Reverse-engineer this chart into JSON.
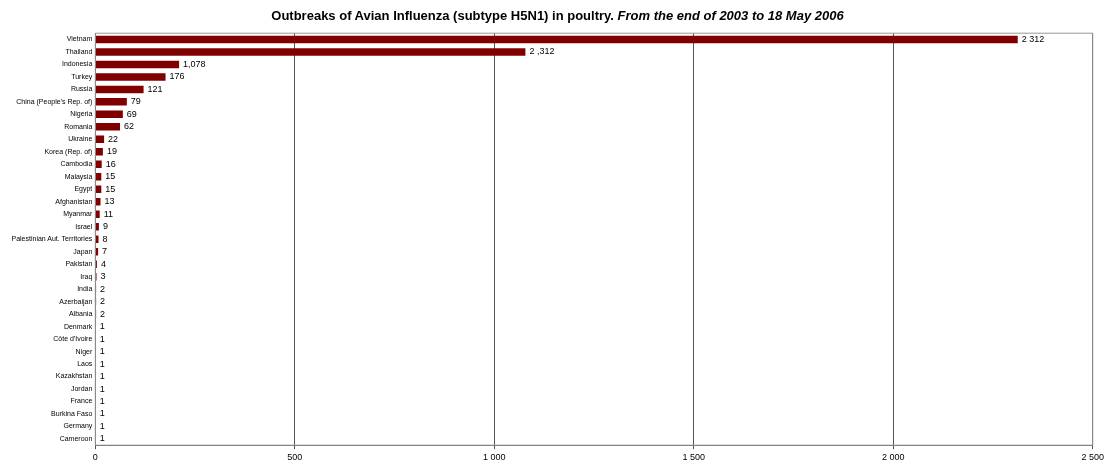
{
  "chart_data": {
    "type": "bar",
    "orientation": "horizontal",
    "title": "Outbreaks of Avian Influenza (subtype H5N1) in poultry.",
    "subtitle": "From the end of 2003 to 18 May 2006",
    "categories": [
      "Vietnam",
      "Thailand",
      "Indonesia",
      "Turkey",
      "Russia",
      "China (People's Rep. of)",
      "Nigeria",
      "Romania",
      "Ukraine",
      "Korea (Rep. of)",
      "Cambodia",
      "Malaysia",
      "Egypt",
      "Afghanistan",
      "Myanmar",
      "Israel",
      "Palestinian Aut. Territories",
      "Japan",
      "Pakistan",
      "Iraq",
      "India",
      "Azerbaijan",
      "Albania",
      "Denmark",
      "Côte d'Ivoire",
      "Niger",
      "Laos",
      "Kazakhstan",
      "Jordan",
      "France",
      "Burkina Faso",
      "Germany",
      "Cameroon"
    ],
    "values": [
      2312,
      1078,
      210,
      176,
      121,
      79,
      69,
      62,
      22,
      19,
      16,
      15,
      15,
      13,
      11,
      9,
      8,
      7,
      4,
      3,
      2,
      2,
      2,
      1,
      1,
      1,
      1,
      1,
      1,
      1,
      1,
      1,
      1
    ],
    "value_labels": [
      "2 312",
      null,
      null,
      "176",
      "121",
      "79",
      "69",
      "62",
      "22",
      "19",
      "16",
      "15",
      "15",
      "13",
      "11",
      "9",
      "8",
      "7",
      "4",
      "3",
      "2",
      "2",
      "2",
      "1",
      "1",
      "1",
      "1",
      "1",
      "1",
      "1",
      "1",
      "1",
      "1"
    ],
    "color": "#800000",
    "xlim": [
      0,
      2500
    ],
    "xticks": [
      0,
      500,
      {
        "value": 1000,
        "label": "1 000"
      },
      {
        "value": 1500,
        "label": "1 500"
      },
      {
        "value": 2000,
        "label": "2 000"
      },
      {
        "value": 2500,
        "label": "2 500"
      }
    ],
    "annotations": [
      {
        "text": "2 ,312",
        "x": 1078,
        "y": "Thailand"
      },
      {
        "text": "1,078",
        "x": 210,
        "y": "Indonesia"
      }
    ],
    "grid": "x",
    "legend": false
  }
}
